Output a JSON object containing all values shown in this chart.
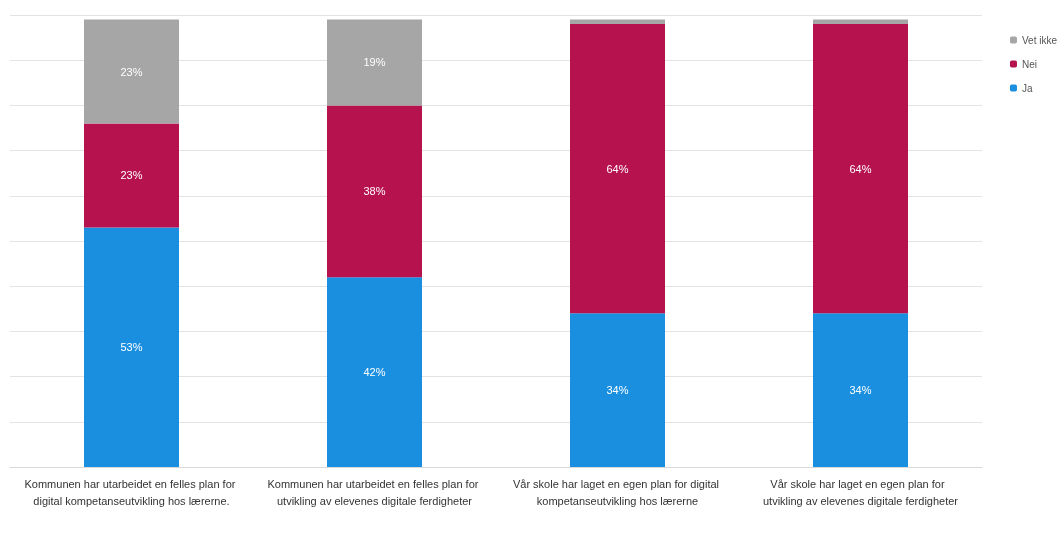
{
  "chart_data": {
    "type": "bar",
    "stacked": true,
    "categories": [
      "Kommunen har utarbeidet en felles plan for digital kompetanseutvikling hos lærerne.",
      "Kommunen har utarbeidet en felles plan for utvikling av elevenes digitale ferdigheter",
      "Vår skole har laget en egen plan for digital kompetanseutvikling hos lærerne",
      "Vår skole har laget en egen plan for  utvikling av elevenes digitale ferdigheter"
    ],
    "series": [
      {
        "name": "Ja",
        "color": "#1a8fe0",
        "values": [
          53,
          42,
          34,
          34
        ],
        "value_labels": [
          "53%",
          "42%",
          "34%",
          "34%"
        ]
      },
      {
        "name": "Nei",
        "color": "#b5124e",
        "values": [
          23,
          38,
          64,
          64
        ],
        "value_labels": [
          "23%",
          "38%",
          "64%",
          "64%"
        ]
      },
      {
        "name": "Vet ikke",
        "color": "#a6a6a6",
        "values": [
          23,
          19,
          1,
          1
        ],
        "value_labels": [
          "23%",
          "19%",
          null,
          null
        ]
      }
    ],
    "ylim": [
      0,
      100
    ],
    "yticks": [
      {
        "value": 0,
        "label": null
      },
      {
        "value": 10,
        "label": null
      },
      {
        "value": 20,
        "label": null
      },
      {
        "value": 30,
        "label": null
      },
      {
        "value": 40,
        "label": null
      },
      {
        "value": 50,
        "label": null
      },
      {
        "value": 60,
        "label": null
      },
      {
        "value": 70,
        "label": null
      },
      {
        "value": 80,
        "label": null
      },
      {
        "value": 90,
        "label": null
      },
      {
        "value": 100,
        "label": null
      }
    ],
    "tick_labels": "x",
    "grid": "y",
    "legend": "top right"
  }
}
